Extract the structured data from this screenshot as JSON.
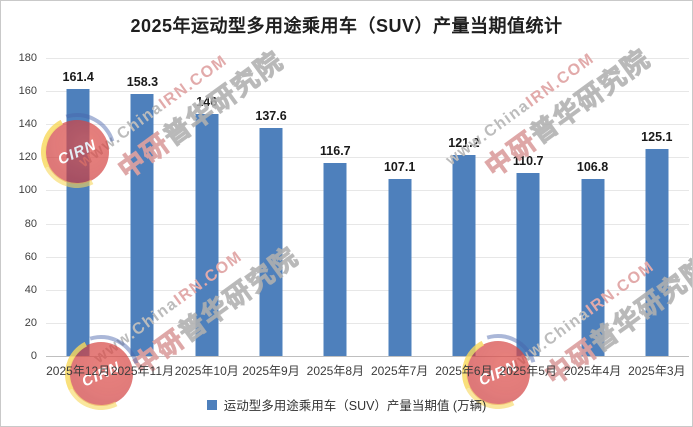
{
  "title": "2025年运动型多用途乘用车（SUV）产量当期值统计",
  "chart_data": {
    "type": "bar",
    "title": "2025年运动型多用途乘用车（SUV）产量当期值统计",
    "categories": [
      "2025年12月",
      "2025年11月",
      "2025年10月",
      "2025年9月",
      "2025年8月",
      "2025年7月",
      "2025年6月",
      "2025年5月",
      "2025年4月",
      "2025年3月"
    ],
    "values": [
      161.4,
      158.3,
      146,
      137.6,
      116.7,
      107.1,
      121.2,
      110.7,
      106.8,
      125.1
    ],
    "value_labels": [
      "161.4",
      "158.3",
      "146",
      "137.6",
      "116.7",
      "107.1",
      "121.2",
      "110.7",
      "106.8",
      "125.1"
    ],
    "unit": "万辆",
    "xlabel": "",
    "ylabel": "",
    "ylim": [
      0,
      180
    ],
    "yticks": [
      0,
      20,
      40,
      60,
      80,
      100,
      120,
      140,
      160,
      180
    ],
    "grid": true,
    "legend_position": "bottom",
    "legend": "运动型多用途乘用车（SUV）产量当期值 (万辆)",
    "bar_color": "#4E80BC"
  },
  "colors": {
    "bar": "#4E80BC",
    "gridline": "#e7e7e7",
    "axis_line": "#bfbfbf",
    "title_text": "#1f1f1f",
    "tick_text": "#404040"
  },
  "watermark": {
    "url_prefix": "www.China",
    "url_red": "IRN.COM",
    "cn_red": "中研",
    "cn_rest": "普华研究院",
    "logo_text": "CIRN"
  }
}
